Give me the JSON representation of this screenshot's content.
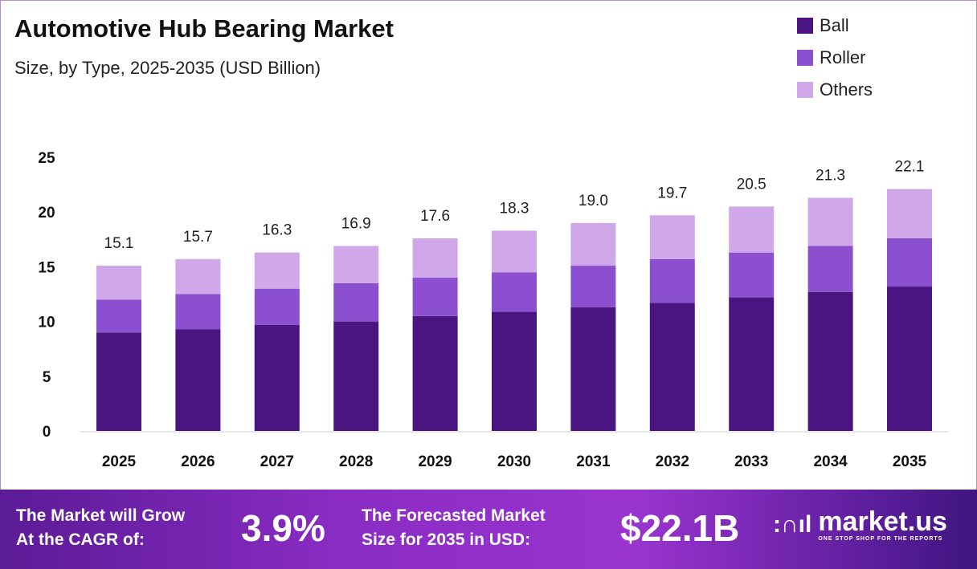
{
  "chart_data": {
    "type": "bar",
    "stacked": true,
    "title": "Automotive Hub Bearing Market",
    "subtitle": "Size, by Type, 2025-2035 (USD Billion)",
    "categories": [
      "2025",
      "2026",
      "2027",
      "2028",
      "2029",
      "2030",
      "2031",
      "2032",
      "2033",
      "2034",
      "2035"
    ],
    "series": [
      {
        "name": "Ball",
        "color": "#4a1580",
        "values": [
          9.0,
          9.3,
          9.7,
          10.0,
          10.5,
          10.9,
          11.3,
          11.7,
          12.2,
          12.7,
          13.2
        ]
      },
      {
        "name": "Roller",
        "color": "#8b4fcf",
        "values": [
          3.0,
          3.2,
          3.3,
          3.5,
          3.5,
          3.6,
          3.8,
          4.0,
          4.1,
          4.2,
          4.4
        ]
      },
      {
        "name": "Others",
        "color": "#d0a8ea",
        "values": [
          3.1,
          3.2,
          3.3,
          3.4,
          3.6,
          3.8,
          3.9,
          4.0,
          4.2,
          4.4,
          4.5
        ]
      }
    ],
    "totals": [
      "15.1",
      "15.7",
      "16.3",
      "16.9",
      "17.6",
      "18.3",
      "19.0",
      "19.7",
      "20.5",
      "21.3",
      "22.1"
    ],
    "ylim": [
      0,
      25
    ],
    "yticks": [
      0,
      5,
      10,
      15,
      20,
      25
    ],
    "grid": false,
    "legend": "top-right",
    "xlabel": "",
    "ylabel": ""
  },
  "footer": {
    "cagr_label_1": "The Market will Grow",
    "cagr_label_2": "At the CAGR of:",
    "cagr_value": "3.9%",
    "forecast_label_1": "The Forecasted Market",
    "forecast_label_2": "Size for 2035 in USD:",
    "forecast_value": "$22.1B",
    "logo_name": "market.us",
    "logo_tagline": "ONE STOP SHOP FOR THE REPORTS"
  }
}
